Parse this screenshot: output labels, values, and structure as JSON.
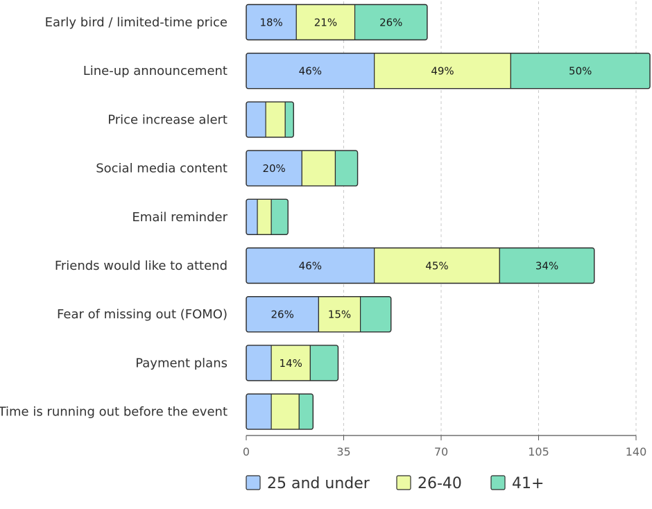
{
  "chart_data": {
    "type": "bar",
    "orientation": "horizontal",
    "stacked": true,
    "categories": [
      "Early bird / limited-time price",
      "Line-up announcement",
      "Price increase alert",
      "Social media content",
      "Email reminder",
      "Friends would like to attend",
      "Fear of missing out (FOMO)",
      "Payment plans",
      "Time is running out before the event"
    ],
    "series": [
      {
        "name": "25 and under",
        "color": "#a8ccfc",
        "values": [
          18,
          46,
          7,
          20,
          4,
          46,
          26,
          9,
          9
        ],
        "labels": [
          "18%",
          "46%",
          "",
          "20%",
          "",
          "46%",
          "26%",
          "",
          ""
        ]
      },
      {
        "name": "26-40",
        "color": "#ecfba4",
        "values": [
          21,
          49,
          7,
          12,
          5,
          45,
          15,
          14,
          10
        ],
        "labels": [
          "21%",
          "49%",
          "",
          "",
          "",
          "45%",
          "15%",
          "14%",
          ""
        ]
      },
      {
        "name": "41+",
        "color": "#7fdfbd",
        "values": [
          26,
          50,
          3,
          8,
          6,
          34,
          11,
          10,
          5
        ],
        "labels": [
          "26%",
          "50%",
          "",
          "",
          "",
          "34%",
          "",
          "",
          ""
        ]
      }
    ],
    "xlim": [
      0,
      140
    ],
    "xticks": [
      0,
      35,
      70,
      105,
      140
    ],
    "xtick_labels": [
      "0",
      "35",
      "70",
      "105",
      "140"
    ],
    "grid": "vertical-dashed",
    "legend_position": "bottom-center",
    "title": "",
    "xlabel": "",
    "ylabel": ""
  }
}
